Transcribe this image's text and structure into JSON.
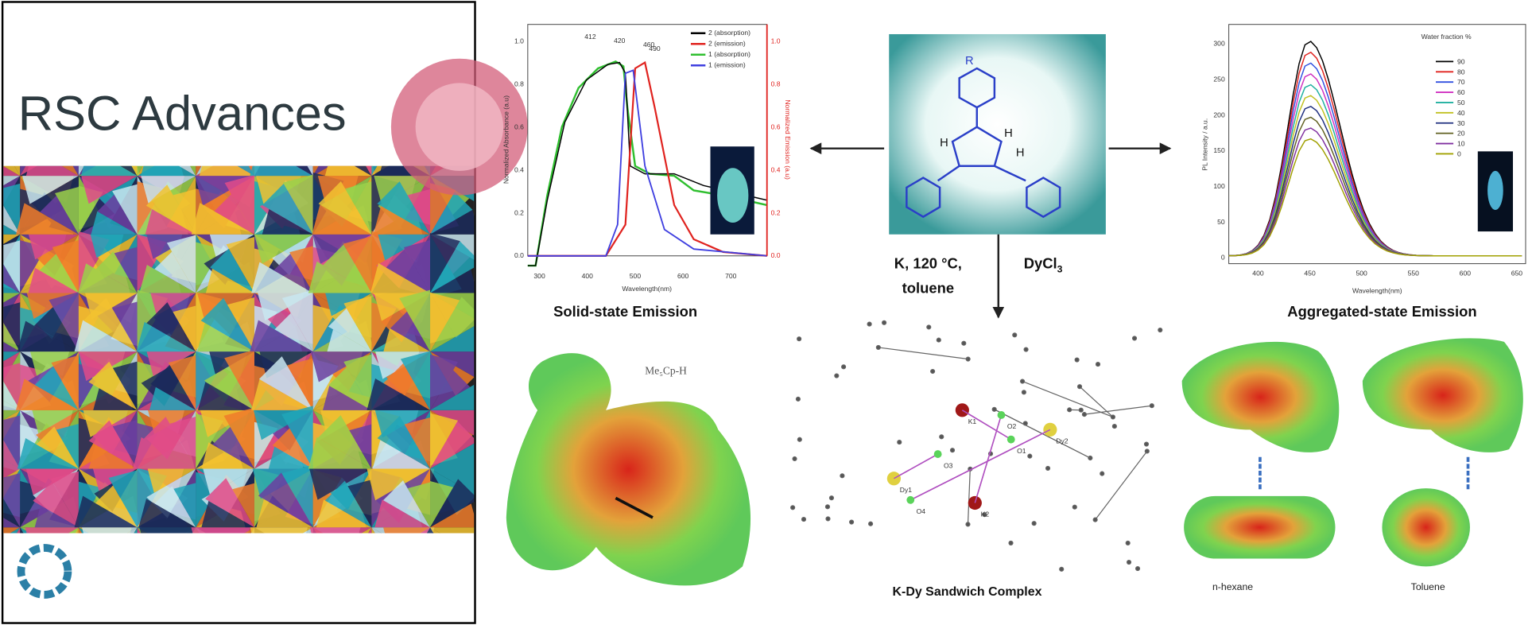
{
  "cover": {
    "title": "RSC Advances"
  },
  "solid_state": {
    "caption": "Solid-state Emission",
    "x_label": "Wavelength(nm)",
    "y_label": "Normalized Absorbance (a.u)",
    "y2_label": "Normalized Emission (a.u)",
    "peaks": [
      "412",
      "420",
      "460",
      "490"
    ],
    "legend": [
      {
        "label": "2 (absorption)",
        "color": "#000000"
      },
      {
        "label": "2 (emission)",
        "color": "#e0231f"
      },
      {
        "label": "1 (absorption)",
        "color": "#2fbf2f"
      },
      {
        "label": "1 (emission)",
        "color": "#4040e0"
      }
    ],
    "yticks": [
      "0.0",
      "0.2",
      "0.4",
      "0.6",
      "0.8",
      "1.0"
    ],
    "xticks": [
      "300",
      "400",
      "500",
      "600",
      "700"
    ]
  },
  "scheme": {
    "substituent": "R",
    "hydrogens": [
      "H",
      "H",
      "H"
    ],
    "conditions": [
      "K, 120 °C,",
      "toluene"
    ],
    "reagent": "DyCl",
    "reagent_sub": "3",
    "product": "K-Dy Sandwich Complex",
    "atoms": [
      "K1",
      "K2",
      "Dy1",
      "Dy2",
      "O1",
      "O2",
      "O3",
      "O4"
    ]
  },
  "aggregated": {
    "caption": "Aggregated-state Emission",
    "x_label": "Wavelength(nm)",
    "y_label": "PL Intensity / a.u.",
    "legend_title": "Water fraction %",
    "legend": [
      {
        "label": "90",
        "color": "#000000"
      },
      {
        "label": "80",
        "color": "#e0231f"
      },
      {
        "label": "70",
        "color": "#3050e0"
      },
      {
        "label": "60",
        "color": "#d030c0"
      },
      {
        "label": "50",
        "color": "#20b0a0"
      },
      {
        "label": "40",
        "color": "#c0c020"
      },
      {
        "label": "30",
        "color": "#203080"
      },
      {
        "label": "20",
        "color": "#606020"
      },
      {
        "label": "10",
        "color": "#8030a0"
      },
      {
        "label": "0",
        "color": "#a0a000"
      }
    ],
    "yticks": [
      "0",
      "50",
      "100",
      "150",
      "200",
      "250",
      "300"
    ],
    "xticks": [
      "400",
      "450",
      "500",
      "550",
      "600",
      "650"
    ]
  },
  "esp": {
    "label": "Me₅Cp-H",
    "solvents": [
      "n-hexane",
      "Toluene"
    ]
  }
}
